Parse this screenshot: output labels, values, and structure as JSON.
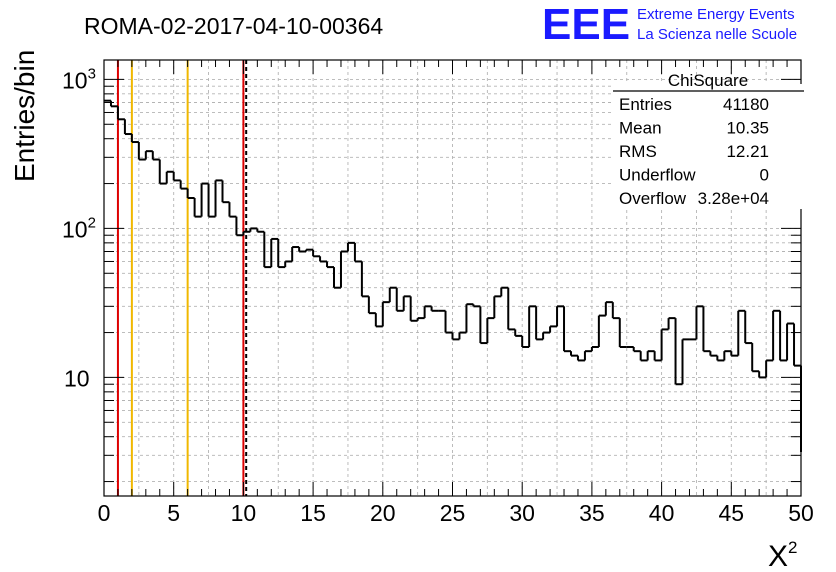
{
  "title": "ROMA-02-2017-04-10-00364",
  "logo": {
    "mark": "EEE",
    "line1": "Extreme Energy Events",
    "line2": "La Scienza nelle Scuole",
    "color": "#1a1aff"
  },
  "stats_box": {
    "name": "ChiSquare",
    "rows": [
      {
        "label": "Entries",
        "value": "41180"
      },
      {
        "label": "Mean",
        "value": "10.35"
      },
      {
        "label": "RMS",
        "value": "12.21"
      },
      {
        "label": "Underflow",
        "value": "0"
      },
      {
        "label": "Overflow",
        "value": "3.28e+04"
      }
    ]
  },
  "chart_data": {
    "type": "bar",
    "style": "step-histogram",
    "xlabel": "X",
    "xlabel_superscript": "2",
    "ylabel": "Entries/bin",
    "xlim": [
      0,
      50
    ],
    "ylim": [
      1.6,
      1350
    ],
    "log_y": true,
    "grid": true,
    "bin_width": 0.5,
    "x_ticks": [
      "0",
      "5",
      "10",
      "15",
      "20",
      "25",
      "30",
      "35",
      "40",
      "45",
      "50"
    ],
    "y_ticks": [
      {
        "value": 10,
        "base": "10",
        "exp": ""
      },
      {
        "value": 100,
        "base": "10",
        "exp": "2"
      },
      {
        "value": 1000,
        "base": "10",
        "exp": "3"
      }
    ],
    "values": [
      720,
      660,
      540,
      430,
      380,
      290,
      330,
      290,
      200,
      240,
      210,
      185,
      160,
      120,
      200,
      120,
      210,
      150,
      120,
      90,
      95,
      100,
      95,
      55,
      85,
      55,
      60,
      75,
      70,
      72,
      65,
      60,
      55,
      40,
      70,
      80,
      60,
      35,
      27,
      22,
      32,
      40,
      28,
      35,
      24,
      25,
      30,
      28,
      28,
      20,
      18,
      20,
      31,
      30,
      17,
      25,
      35,
      40,
      21,
      19,
      16,
      30,
      18,
      20,
      22,
      30,
      15,
      14,
      13,
      15,
      16,
      26,
      32,
      25,
      16,
      16,
      15,
      13,
      15,
      13,
      21,
      25,
      9,
      18,
      18,
      30,
      15,
      14,
      13,
      15,
      14,
      28,
      17,
      11,
      10,
      13,
      28,
      13,
      23,
      12
    ],
    "vlines": [
      {
        "x": 1,
        "color": "#dd0000",
        "style": "solid"
      },
      {
        "x": 2,
        "color": "#f0b800",
        "style": "solid"
      },
      {
        "x": 6,
        "color": "#f0b800",
        "style": "solid"
      },
      {
        "x": 10,
        "color": "#dd0000",
        "style": "solid"
      },
      {
        "x": 10.2,
        "color": "#000000",
        "style": "dashed"
      }
    ]
  }
}
